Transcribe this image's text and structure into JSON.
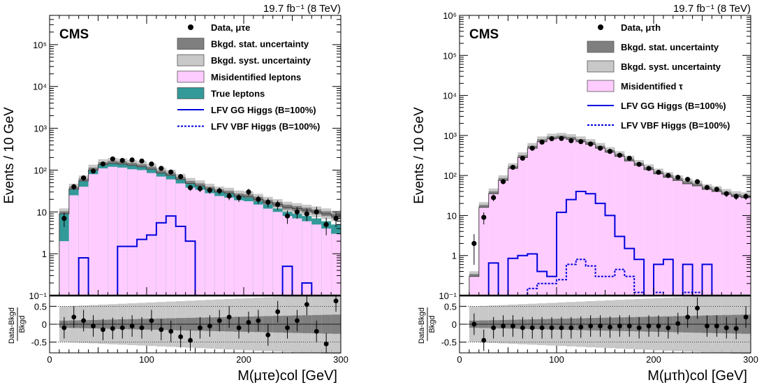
{
  "colors": {
    "data": "#000000",
    "stat_unc": "#7f7f7f",
    "syst_unc": "#c8c8c8",
    "misid": "#ffccff",
    "true_leptons": "#339999",
    "lfv": "#0000dd"
  },
  "panels": [
    {
      "lumi": "19.7 fb⁻¹ (8 TeV)",
      "cms": "CMS",
      "ylabel": "Events / 10 GeV",
      "xlabel": "M(μτe)col [GeV]",
      "ratio_ylabel_top": "Data-Bkgd",
      "ratio_ylabel_bottom": "Bkgd",
      "legend": [
        {
          "key": "data",
          "label": "Data, μτe"
        },
        {
          "key": "stat",
          "label": "Bkgd. stat. uncertainty"
        },
        {
          "key": "syst",
          "label": "Bkgd. syst. uncertainty"
        },
        {
          "key": "misid",
          "label": "Misidentified leptons"
        },
        {
          "key": "true",
          "label": "True leptons"
        },
        {
          "key": "gg",
          "label": "LFV GG Higgs (B=100%)"
        },
        {
          "key": "vbf",
          "label": "LFV VBF Higgs (B=100%)"
        }
      ],
      "y_ticks": [
        "10⁻¹",
        "1",
        "10",
        "10²",
        "10³",
        "10⁴",
        "10⁵"
      ],
      "x_ticks": [
        "0",
        "100",
        "200",
        "300"
      ],
      "ratio_ticks": [
        "0.5",
        "0",
        "-0.5"
      ]
    },
    {
      "lumi": "19.7 fb⁻¹ (8 TeV)",
      "cms": "CMS",
      "ylabel": "Events / 10 GeV",
      "xlabel": "M(μτh)col [GeV]",
      "ratio_ylabel_top": "Data-Bkgd",
      "ratio_ylabel_bottom": "Bkgd",
      "legend": [
        {
          "key": "data",
          "label": "Data, μτh"
        },
        {
          "key": "stat",
          "label": "Bkgd. stat. uncertainty"
        },
        {
          "key": "syst",
          "label": "Bkgd. syst. uncertainty"
        },
        {
          "key": "misid",
          "label": "Misidentified τ"
        },
        {
          "key": "gg",
          "label": "LFV GG Higgs (B=100%)"
        },
        {
          "key": "vbf",
          "label": "LFV VBF Higgs (B=100%)"
        }
      ],
      "y_ticks": [
        "10⁻¹",
        "1",
        "10",
        "10²",
        "10³",
        "10⁴",
        "10⁵",
        "10⁶"
      ],
      "x_ticks": [
        "0",
        "100",
        "200",
        "300"
      ],
      "ratio_ticks": [
        "0.5",
        "0",
        "-0.5"
      ]
    }
  ],
  "chart_data": [
    {
      "type": "histogram",
      "title": "",
      "xlabel": "M(μτe)col [GeV]",
      "ylabel": "Events / 10 GeV",
      "y_scale": "log",
      "xlim": [
        0,
        300
      ],
      "ylim": [
        0.1,
        500000
      ],
      "bin_width": 10,
      "x": [
        15,
        25,
        35,
        45,
        55,
        65,
        75,
        85,
        95,
        105,
        115,
        125,
        135,
        145,
        155,
        165,
        175,
        185,
        195,
        205,
        215,
        225,
        235,
        245,
        255,
        265,
        275,
        285,
        295
      ],
      "series": [
        {
          "name": "True leptons",
          "values": [
            9,
            35,
            55,
            100,
            135,
            145,
            140,
            130,
            120,
            105,
            85,
            75,
            60,
            48,
            42,
            35,
            30,
            28,
            24,
            22,
            18,
            15,
            12,
            10,
            9,
            8,
            7,
            6,
            5
          ]
        },
        {
          "name": "Misidentified leptons",
          "values": [
            2,
            25,
            40,
            80,
            110,
            120,
            115,
            105,
            100,
            85,
            70,
            60,
            48,
            38,
            34,
            28,
            24,
            22,
            19,
            18,
            15,
            12,
            10,
            8,
            7,
            6,
            5,
            4,
            3
          ]
        },
        {
          "name": "LFV GG Higgs (B=100%)",
          "values": [
            0,
            0,
            0.8,
            0,
            0,
            0,
            1.5,
            1.5,
            2.2,
            2.8,
            5.5,
            8.0,
            4.5,
            2.0,
            0,
            0,
            0,
            0,
            0,
            0,
            0,
            0,
            0,
            0.5,
            0,
            0.2,
            0,
            0,
            0
          ]
        },
        {
          "name": "LFV VBF Higgs (B=100%)",
          "values": [
            0,
            0,
            0,
            0,
            0,
            0,
            0,
            0,
            0,
            0,
            0,
            0,
            0,
            0,
            0,
            0,
            0,
            0,
            0,
            0,
            0,
            0,
            0,
            0,
            0,
            0,
            0,
            0,
            0
          ]
        },
        {
          "name": "Data, μτe",
          "values": [
            7,
            40,
            65,
            95,
            140,
            185,
            170,
            175,
            165,
            140,
            110,
            90,
            70,
            38,
            36,
            33,
            32,
            24,
            22,
            30,
            20,
            17,
            15,
            8,
            10,
            9,
            10,
            5,
            7
          ]
        }
      ],
      "ratio": {
        "ylim": [
          -0.8,
          0.8
        ],
        "values": [
          -0.1,
          0.2,
          0.1,
          -0.05,
          -0.15,
          -0.12,
          -0.1,
          -0.05,
          -0.1,
          0.1,
          -0.15,
          -0.2,
          -0.35,
          -0.45,
          -0.1,
          -0.05,
          0.1,
          0.2,
          -0.1,
          0.05,
          0.1,
          -0.3,
          0.35,
          -0.1,
          0.1,
          0.55,
          -0.2,
          -0.55,
          0.65
        ]
      }
    },
    {
      "type": "histogram",
      "title": "",
      "xlabel": "M(μτh)col [GeV]",
      "ylabel": "Events / 10 GeV",
      "y_scale": "log",
      "xlim": [
        0,
        300
      ],
      "ylim": [
        0.1,
        1000000
      ],
      "bin_width": 10,
      "x": [
        15,
        25,
        35,
        45,
        55,
        65,
        75,
        85,
        95,
        105,
        115,
        125,
        135,
        145,
        155,
        165,
        175,
        185,
        195,
        205,
        215,
        225,
        235,
        245,
        255,
        265,
        275,
        285,
        295
      ],
      "series": [
        {
          "name": "Misidentified τ",
          "values": [
            0.3,
            16,
            35,
            75,
            150,
            280,
            480,
            700,
            820,
            860,
            800,
            700,
            600,
            480,
            380,
            300,
            230,
            180,
            140,
            110,
            90,
            75,
            62,
            55,
            45,
            40,
            34,
            30,
            28
          ]
        },
        {
          "name": "LFV GG Higgs (B=100%)",
          "values": [
            0,
            0,
            0.65,
            0,
            0.85,
            1.0,
            1.1,
            0.4,
            0.3,
            12,
            25,
            40,
            35,
            20,
            10,
            3,
            1.5,
            0.8,
            0.1,
            0.6,
            0.8,
            0.1,
            0.6,
            0.1,
            0.6,
            0,
            0,
            0,
            0
          ]
        },
        {
          "name": "LFV VBF Higgs (B=100%)",
          "values": [
            0,
            0,
            0,
            0,
            0,
            0,
            0.15,
            0.2,
            0.2,
            0.25,
            0.6,
            0.8,
            0.55,
            0.3,
            0.3,
            0.45,
            0.3,
            0.12,
            0.1,
            0.12,
            0.1,
            0.1,
            0.12,
            0.12,
            0,
            0,
            0,
            0,
            0
          ]
        },
        {
          "name": "Data, μτh",
          "values": [
            2,
            9,
            28,
            70,
            160,
            270,
            480,
            680,
            830,
            840,
            740,
            700,
            610,
            480,
            400,
            320,
            270,
            190,
            150,
            120,
            100,
            90,
            80,
            70,
            50,
            45,
            35,
            30,
            30
          ]
        }
      ],
      "ratio": {
        "ylim": [
          -0.8,
          0.8
        ],
        "values": [
          0,
          -0.45,
          -0.1,
          -0.05,
          -0.05,
          -0.1,
          -0.1,
          -0.1,
          -0.1,
          -0.1,
          -0.1,
          -0.08,
          -0.05,
          -0.05,
          -0.08,
          -0.05,
          -0.05,
          -0.1,
          -0.05,
          -0.05,
          -0.1,
          0.02,
          0.2,
          0.45,
          -0.05,
          -0.05,
          -0.1,
          -0.12,
          0.2
        ]
      }
    }
  ]
}
